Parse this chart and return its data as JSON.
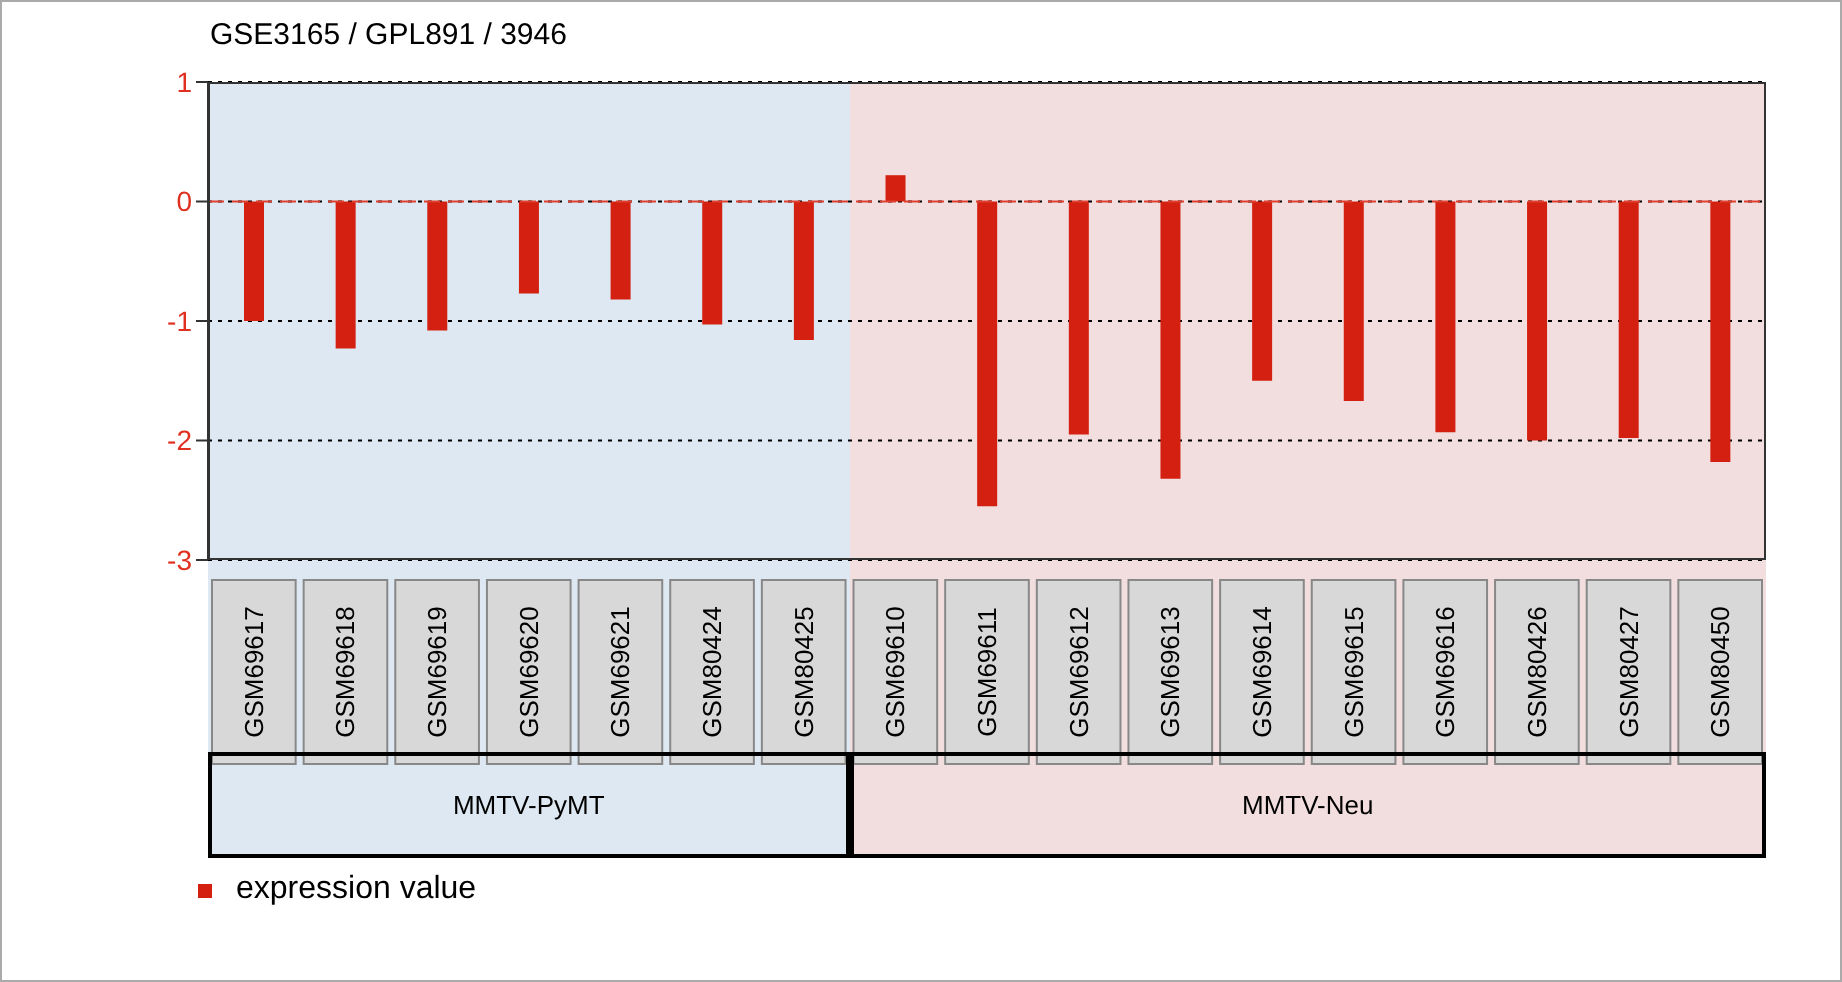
{
  "chart_data": {
    "type": "bar",
    "title": "GSE3165 / GPL891 / 3946",
    "categories": [
      "GSM69617",
      "GSM69618",
      "GSM69619",
      "GSM69620",
      "GSM69621",
      "GSM80424",
      "GSM80425",
      "GSM69610",
      "GSM69611",
      "GSM69612",
      "GSM69613",
      "GSM69614",
      "GSM69615",
      "GSM69616",
      "GSM80426",
      "GSM80427",
      "GSM80450"
    ],
    "series": [
      {
        "name": "expression value",
        "color": "#d42010",
        "values": [
          -1.0,
          -1.23,
          -1.08,
          -0.77,
          -0.82,
          -1.03,
          -1.16,
          0.22,
          -2.55,
          -1.95,
          -2.32,
          -1.5,
          -1.67,
          -1.93,
          -2.0,
          -1.98,
          -2.18
        ]
      }
    ],
    "ylim": [
      -3,
      1
    ],
    "yticks": [
      -3,
      -2,
      -1,
      0,
      1
    ],
    "grid": "y",
    "legend": "bottom left",
    "ref_lines": [
      {
        "axis": "y",
        "value": 0,
        "color": "#e04030",
        "line_style": "dashed"
      }
    ],
    "bands": [
      {
        "axis": "x",
        "from": "GSM69617",
        "to": "GSM80425",
        "label": "MMTV-PyMT",
        "color": "#dde8f2"
      },
      {
        "axis": "x",
        "from": "GSM69610",
        "to": "GSM80450",
        "label": "MMTV-Neu",
        "color": "#f2dede"
      }
    ]
  }
}
